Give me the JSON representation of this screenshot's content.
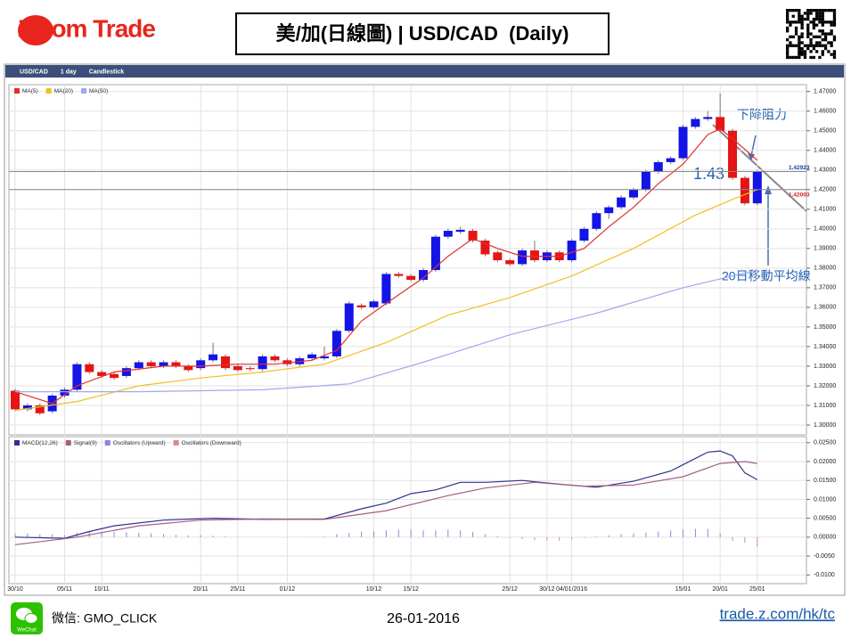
{
  "header": {
    "logo": "Z.com Trade",
    "title": "美/加(日線圖) | USD/CAD  (Daily)"
  },
  "toolbar": [
    "USD/CAD",
    "1 day",
    "Candlestick"
  ],
  "chart_data": [
    {
      "type": "candlestick",
      "categories": [
        "30/10",
        null,
        null,
        null,
        "05/11",
        null,
        null,
        "10/11",
        null,
        null,
        null,
        null,
        null,
        null,
        null,
        "20/11",
        null,
        null,
        "25/11",
        null,
        null,
        null,
        "01/12",
        null,
        null,
        null,
        null,
        null,
        null,
        "10/12",
        null,
        null,
        "15/12",
        null,
        null,
        null,
        null,
        null,
        null,
        null,
        "25/12",
        null,
        null,
        "30/12",
        null,
        "04/01/2016",
        null,
        null,
        null,
        null,
        null,
        null,
        null,
        null,
        "15/01",
        null,
        null,
        "20/01",
        null,
        null,
        "25/01"
      ],
      "open": [
        1.3175,
        1.308,
        1.31,
        1.307,
        1.315,
        1.318,
        1.331,
        1.327,
        1.326,
        1.325,
        1.329,
        1.332,
        1.33,
        1.332,
        1.33,
        1.329,
        1.333,
        1.335,
        1.33,
        1.329,
        1.3285,
        1.335,
        1.333,
        1.331,
        1.334,
        1.334,
        1.335,
        1.348,
        1.361,
        1.36,
        1.362,
        1.377,
        1.376,
        1.374,
        1.379,
        1.396,
        1.3985,
        1.399,
        1.394,
        1.388,
        1.384,
        1.382,
        1.389,
        1.384,
        1.388,
        1.384,
        1.394,
        1.4,
        1.408,
        1.411,
        1.416,
        1.42,
        1.429,
        1.434,
        1.436,
        1.452,
        1.456,
        1.457,
        1.45,
        1.426,
        1.413
      ],
      "high": [
        1.3185,
        1.311,
        1.311,
        1.316,
        1.319,
        1.332,
        1.332,
        1.328,
        1.327,
        1.33,
        1.333,
        1.333,
        1.333,
        1.333,
        1.331,
        1.334,
        1.342,
        1.336,
        1.331,
        1.33,
        1.336,
        1.336,
        1.334,
        1.335,
        1.337,
        1.34,
        1.349,
        1.363,
        1.362,
        1.364,
        1.378,
        1.378,
        1.377,
        1.38,
        1.397,
        1.4,
        1.401,
        1.4,
        1.395,
        1.389,
        1.385,
        1.39,
        1.394,
        1.389,
        1.389,
        1.395,
        1.401,
        1.409,
        1.412,
        1.417,
        1.421,
        1.43,
        1.435,
        1.437,
        1.453,
        1.457,
        1.46,
        1.469,
        1.451,
        1.427,
        1.43
      ],
      "low": [
        1.307,
        1.307,
        1.305,
        1.306,
        1.314,
        1.317,
        1.326,
        1.324,
        1.323,
        1.324,
        1.328,
        1.329,
        1.329,
        1.329,
        1.327,
        1.328,
        1.332,
        1.328,
        1.327,
        1.3275,
        1.3275,
        1.332,
        1.33,
        1.33,
        1.333,
        1.333,
        1.334,
        1.347,
        1.359,
        1.359,
        1.361,
        1.375,
        1.373,
        1.373,
        1.378,
        1.395,
        1.3975,
        1.393,
        1.386,
        1.383,
        1.381,
        1.381,
        1.383,
        1.383,
        1.383,
        1.383,
        1.393,
        1.399,
        1.405,
        1.41,
        1.415,
        1.419,
        1.428,
        1.433,
        1.435,
        1.451,
        1.455,
        1.449,
        1.425,
        1.412,
        1.412
      ],
      "close": [
        1.308,
        1.31,
        1.306,
        1.315,
        1.318,
        1.331,
        1.327,
        1.325,
        1.324,
        1.329,
        1.332,
        1.33,
        1.332,
        1.33,
        1.328,
        1.333,
        1.336,
        1.329,
        1.328,
        1.3285,
        1.335,
        1.333,
        1.331,
        1.334,
        1.336,
        1.335,
        1.348,
        1.362,
        1.36,
        1.363,
        1.377,
        1.376,
        1.374,
        1.379,
        1.396,
        1.399,
        1.3995,
        1.394,
        1.387,
        1.384,
        1.382,
        1.389,
        1.384,
        1.388,
        1.384,
        1.394,
        1.4,
        1.408,
        1.411,
        1.416,
        1.42,
        1.429,
        1.434,
        1.436,
        1.452,
        1.456,
        1.457,
        1.45,
        1.426,
        1.413,
        1.429
      ],
      "up_color": "#1414e6",
      "down_color": "#e61414",
      "series": [
        {
          "name": "MA(5)",
          "color": "#e03030",
          "x": [
            0,
            3,
            5,
            8,
            12,
            15,
            18,
            21,
            24,
            26,
            28,
            30,
            33,
            35,
            37,
            39,
            41,
            44,
            46,
            48,
            50,
            52,
            54,
            56,
            57,
            58,
            60
          ],
          "values": [
            1.317,
            1.311,
            1.32,
            1.327,
            1.33,
            1.33,
            1.331,
            1.331,
            1.333,
            1.338,
            1.353,
            1.362,
            1.375,
            1.386,
            1.395,
            1.39,
            1.386,
            1.386,
            1.39,
            1.401,
            1.411,
            1.423,
            1.433,
            1.448,
            1.451,
            1.446,
            1.435
          ]
        },
        {
          "name": "MA(20)",
          "color": "#f0c020",
          "x": [
            0,
            5,
            10,
            15,
            20,
            25,
            30,
            35,
            40,
            45,
            50,
            55,
            58,
            60
          ],
          "values": [
            1.3075,
            1.312,
            1.32,
            1.324,
            1.327,
            1.331,
            1.342,
            1.356,
            1.365,
            1.376,
            1.39,
            1.407,
            1.415,
            1.42
          ]
        },
        {
          "name": "MA(50)",
          "color": "#a0a8f0",
          "x": [
            0,
            10,
            20,
            27,
            33,
            40,
            47,
            54,
            60
          ],
          "values": [
            1.317,
            1.317,
            1.318,
            1.321,
            1.332,
            1.346,
            1.357,
            1.37,
            1.379
          ]
        }
      ],
      "ylim": [
        1.295,
        1.4735
      ],
      "yticks": [
        {
          "value": 1.3,
          "label": "1.30000"
        },
        {
          "value": 1.31,
          "label": "1.31000"
        },
        {
          "value": 1.32,
          "label": "1.32000"
        },
        {
          "value": 1.33,
          "label": "1.33000"
        },
        {
          "value": 1.34,
          "label": "1.34000"
        },
        {
          "value": 1.35,
          "label": "1.35000"
        },
        {
          "value": 1.36,
          "label": "1.36000"
        },
        {
          "value": 1.37,
          "label": "1.37000"
        },
        {
          "value": 1.38,
          "label": "1.38000"
        },
        {
          "value": 1.39,
          "label": "1.39000"
        },
        {
          "value": 1.4,
          "label": "1.40000"
        },
        {
          "value": 1.41,
          "label": "1.41000"
        },
        {
          "value": 1.42,
          "label": "1.42000"
        },
        {
          "value": 1.43,
          "label": "1.43000"
        },
        {
          "value": 1.44,
          "label": "1.44000"
        },
        {
          "value": 1.45,
          "label": "1.45000"
        },
        {
          "value": 1.46,
          "label": "1.46000"
        },
        {
          "value": 1.47,
          "label": "1.47000"
        }
      ],
      "price_lines": {
        "values": [
          1.42923,
          1.42003
        ],
        "value_labels": [
          "1.42923",
          "1.42003"
        ],
        "colors": [
          "#2040a0",
          "#d02020"
        ]
      },
      "grid": true,
      "annotations": [
        "下降阻力",
        "1.43",
        "20日移動平均線"
      ]
    },
    {
      "type": "macd",
      "series": [
        {
          "name": "MACD(12,26)",
          "color": "#303090",
          "x": [
            0,
            4,
            6,
            8,
            12,
            16,
            20,
            25,
            28,
            30,
            32,
            34,
            36,
            38,
            41,
            44,
            47,
            50,
            53,
            56,
            57,
            58,
            59,
            60
          ],
          "values": [
            0,
            -0.0003,
            0.0015,
            0.003,
            0.0045,
            0.005,
            0.0047,
            0.0048,
            0.0075,
            0.009,
            0.0115,
            0.0125,
            0.0145,
            0.0145,
            0.015,
            0.014,
            0.0132,
            0.0148,
            0.0175,
            0.0225,
            0.0228,
            0.0215,
            0.017,
            0.0152
          ]
        },
        {
          "name": "Signal(9)",
          "color": "#a06080",
          "x": [
            0,
            5,
            10,
            15,
            20,
            25,
            30,
            35,
            38,
            42,
            46,
            50,
            54,
            57,
            59,
            60
          ],
          "values": [
            -0.002,
            0,
            0.003,
            0.0045,
            0.0048,
            0.0047,
            0.007,
            0.011,
            0.013,
            0.0145,
            0.0135,
            0.0138,
            0.016,
            0.0195,
            0.02,
            0.0195
          ]
        }
      ],
      "histogram": {
        "names": [
          "Oscillators (Upward)",
          "Oscillators (Downward)"
        ],
        "colors": [
          "#8888dd",
          "#dd8888"
        ],
        "values": [
          0.001,
          0.001,
          0.0008,
          0.0008,
          0.0005,
          0.0012,
          0.0015,
          0.0015,
          0.0014,
          0.0013,
          0.0012,
          0.001,
          0.0008,
          0.0006,
          0.0005,
          0.0005,
          0.0004,
          0.0002,
          0.0001,
          0,
          0,
          0,
          -0.0001,
          0,
          0.0001,
          0.0002,
          0.0008,
          0.0012,
          0.0015,
          0.0015,
          0.0018,
          0.002,
          0.002,
          0.0018,
          0.0018,
          0.002,
          0.0018,
          0.0014,
          0.0008,
          0.0003,
          -0.0002,
          -0.0005,
          -0.0008,
          -0.001,
          -0.001,
          -0.0006,
          -0.0002,
          0.0002,
          0.0005,
          0.0008,
          0.001,
          0.0012,
          0.0015,
          0.0018,
          0.002,
          0.0022,
          0.0022,
          0.001,
          -0.001,
          -0.0015,
          -0.0025
        ]
      },
      "ylim": [
        -0.0123,
        0.0266
      ],
      "yticks": [
        {
          "value": -0.01,
          "label": "-0.0100"
        },
        {
          "value": -0.005,
          "label": "-0.0050"
        },
        {
          "value": 0,
          "label": "0.00000"
        },
        {
          "value": 0.005,
          "label": "0.00500"
        },
        {
          "value": 0.01,
          "label": "0.01000"
        },
        {
          "value": 0.015,
          "label": "0.01500"
        },
        {
          "value": 0.02,
          "label": "0.02000"
        },
        {
          "value": 0.025,
          "label": "0.02500"
        }
      ],
      "grid": true
    }
  ],
  "footer": {
    "wechat_icon": "WeChat",
    "wechat": "微信: GMO_CLICK",
    "date": "26-01-2016",
    "url": "trade.z.com/hk/tc"
  }
}
